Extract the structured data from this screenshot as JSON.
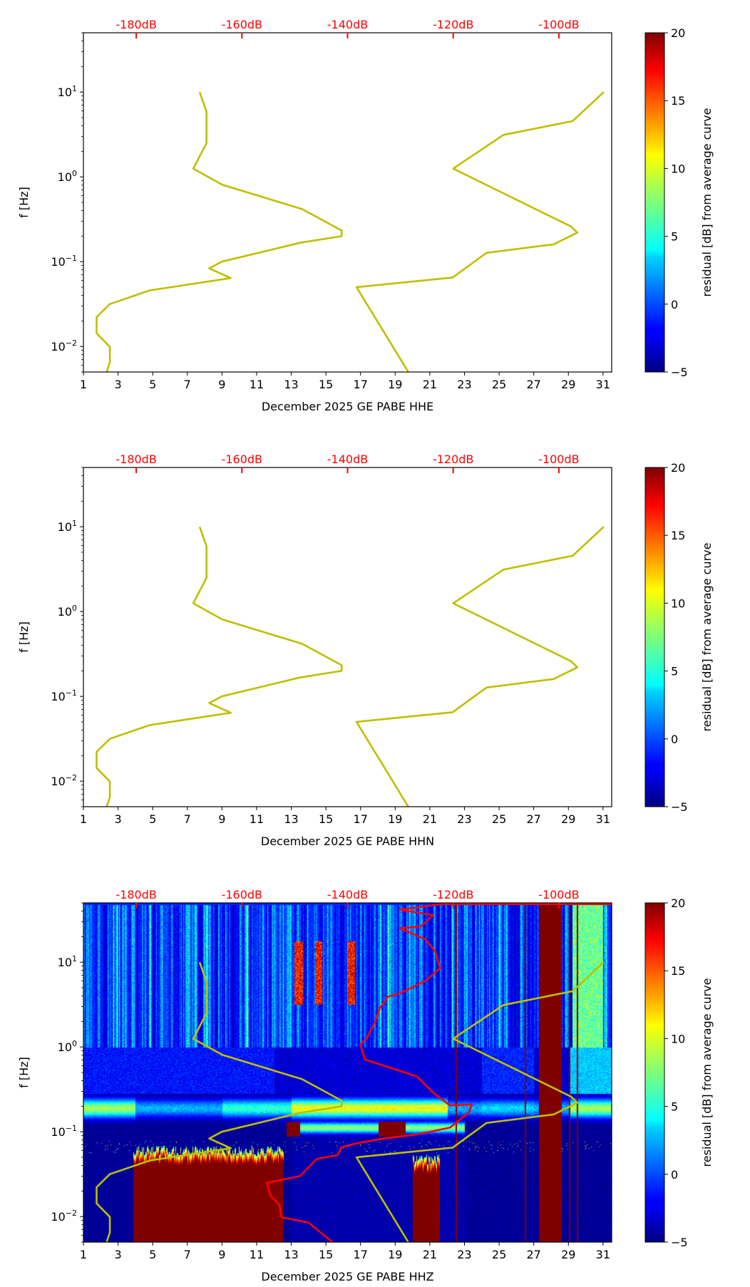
{
  "colors": {
    "model_curve": "#bfbf00",
    "median_curve": "#ff0000",
    "db_axis": "#ff0000",
    "axis": "#000000"
  },
  "common": {
    "ylabel": "f [Hz]",
    "colorbar_label": "residual [dB] from average curve",
    "xticks": [
      "1",
      "3",
      "5",
      "7",
      "9",
      "11",
      "13",
      "15",
      "17",
      "19",
      "21",
      "23",
      "25",
      "27",
      "29",
      "31"
    ],
    "top_ticks": [
      "-180dB",
      "-160dB",
      "-140dB",
      "-120dB",
      "-100dB"
    ],
    "yticks": [
      {
        "base": "10",
        "exp": "1"
      },
      {
        "base": "10",
        "exp": "0"
      },
      {
        "base": "10",
        "exp": "−1"
      },
      {
        "base": "10",
        "exp": "−2"
      }
    ],
    "colorbar_ticks": [
      "20",
      "15",
      "10",
      "5",
      "0",
      "−5"
    ]
  },
  "chart_data": [
    {
      "type": "heatmap",
      "xlabel": "December 2025 GE PABE  HHE",
      "ylabel": "f [Hz]",
      "xlim": [
        1,
        31.5
      ],
      "ylim": [
        0.005,
        50
      ],
      "yscale": "log",
      "top_axis": {
        "unit": "dB",
        "lim": [
          -190,
          -90
        ],
        "ticks": [
          -180,
          -160,
          -140,
          -120,
          -100
        ]
      },
      "colorbar": {
        "label": "residual [dB] from average curve",
        "range": [
          -5,
          20
        ],
        "ticks": [
          -5,
          0,
          5,
          10,
          15,
          20
        ],
        "cmap": "jet"
      },
      "has_spectrogram": false,
      "series": [
        {
          "name": "low noise model",
          "x_unit": "dB",
          "points": [
            [
              -168,
              10
            ],
            [
              -166.7,
              5.88
            ],
            [
              -166.7,
              2.5
            ],
            [
              -169.2,
              1.25
            ],
            [
              -163.7,
              0.806
            ],
            [
              -148.6,
              0.417
            ],
            [
              -141.1,
              0.233
            ],
            [
              -141.1,
              0.2
            ],
            [
              -149,
              0.167
            ],
            [
              -163.8,
              0.1
            ],
            [
              -166.2,
              0.0833
            ],
            [
              -162.1,
              0.0641
            ],
            [
              -177.5,
              0.0457
            ],
            [
              -185,
              0.0316
            ],
            [
              -187.5,
              0.0222
            ],
            [
              -187.5,
              0.0143
            ],
            [
              -185,
              0.0099
            ],
            [
              -185,
              0.0065
            ],
            [
              -185.6,
              0.005
            ]
          ]
        },
        {
          "name": "high noise model",
          "x_unit": "dB",
          "points": [
            [
              -91.5,
              10
            ],
            [
              -97.4,
              4.545
            ],
            [
              -110.5,
              3.125
            ],
            [
              -120,
              1.25
            ],
            [
              -97.7,
              0.26
            ],
            [
              -96.5,
              0.22
            ],
            [
              -101,
              0.16
            ],
            [
              -113.7,
              0.127
            ],
            [
              -120.1,
              0.065
            ],
            [
              -138.3,
              0.05
            ],
            [
              -128.5,
              0.005
            ]
          ]
        }
      ]
    },
    {
      "type": "heatmap",
      "xlabel": "December 2025 GE PABE  HHN",
      "ylabel": "f [Hz]",
      "xlim": [
        1,
        31.5
      ],
      "ylim": [
        0.005,
        50
      ],
      "yscale": "log",
      "top_axis": {
        "unit": "dB",
        "lim": [
          -190,
          -90
        ],
        "ticks": [
          -180,
          -160,
          -140,
          -120,
          -100
        ]
      },
      "colorbar": {
        "label": "residual [dB] from average curve",
        "range": [
          -5,
          20
        ],
        "ticks": [
          -5,
          0,
          5,
          10,
          15,
          20
        ],
        "cmap": "jet"
      },
      "has_spectrogram": false,
      "series": [
        {
          "name": "low noise model",
          "x_unit": "dB",
          "points": [
            [
              -168,
              10
            ],
            [
              -166.7,
              5.88
            ],
            [
              -166.7,
              2.5
            ],
            [
              -169.2,
              1.25
            ],
            [
              -163.7,
              0.806
            ],
            [
              -148.6,
              0.417
            ],
            [
              -141.1,
              0.233
            ],
            [
              -141.1,
              0.2
            ],
            [
              -149,
              0.167
            ],
            [
              -163.8,
              0.1
            ],
            [
              -166.2,
              0.0833
            ],
            [
              -162.1,
              0.0641
            ],
            [
              -177.5,
              0.0457
            ],
            [
              -185,
              0.0316
            ],
            [
              -187.5,
              0.0222
            ],
            [
              -187.5,
              0.0143
            ],
            [
              -185,
              0.0099
            ],
            [
              -185,
              0.0065
            ],
            [
              -185.6,
              0.005
            ]
          ]
        },
        {
          "name": "high noise model",
          "x_unit": "dB",
          "points": [
            [
              -91.5,
              10
            ],
            [
              -97.4,
              4.545
            ],
            [
              -110.5,
              3.125
            ],
            [
              -120,
              1.25
            ],
            [
              -97.7,
              0.26
            ],
            [
              -96.5,
              0.22
            ],
            [
              -101,
              0.16
            ],
            [
              -113.7,
              0.127
            ],
            [
              -120.1,
              0.065
            ],
            [
              -138.3,
              0.05
            ],
            [
              -128.5,
              0.005
            ]
          ]
        }
      ]
    },
    {
      "type": "heatmap",
      "xlabel": "December 2025 GE PABE  HHZ",
      "ylabel": "f [Hz]",
      "xlim": [
        1,
        31.5
      ],
      "ylim": [
        0.005,
        50
      ],
      "yscale": "log",
      "top_axis": {
        "unit": "dB",
        "lim": [
          -190,
          -90
        ],
        "ticks": [
          -180,
          -160,
          -140,
          -120,
          -100
        ]
      },
      "colorbar": {
        "label": "residual [dB] from average curve",
        "range": [
          -5,
          20
        ],
        "ticks": [
          -5,
          0,
          5,
          10,
          15,
          20
        ],
        "cmap": "jet"
      },
      "has_spectrogram": true,
      "spectrogram_features": {
        "saturated_low_freq_days": [
          [
            3.85,
            12.55
          ],
          [
            20.0,
            21.55
          ]
        ],
        "saturated_full_days": [
          [
            27.3,
            28.6
          ]
        ],
        "thin_gap_days": [
          22.5,
          26.5,
          29.05,
          29.5
        ],
        "microseism_band_hz": [
          0.1,
          0.25
        ]
      },
      "series": [
        {
          "name": "low noise model",
          "x_unit": "dB",
          "points": [
            [
              -168,
              10
            ],
            [
              -166.7,
              5.88
            ],
            [
              -166.7,
              2.5
            ],
            [
              -169.2,
              1.25
            ],
            [
              -163.7,
              0.806
            ],
            [
              -148.6,
              0.417
            ],
            [
              -141.1,
              0.233
            ],
            [
              -141.1,
              0.2
            ],
            [
              -149,
              0.167
            ],
            [
              -163.8,
              0.1
            ],
            [
              -166.2,
              0.0833
            ],
            [
              -162.1,
              0.0641
            ],
            [
              -177.5,
              0.0457
            ],
            [
              -185,
              0.0316
            ],
            [
              -187.5,
              0.0222
            ],
            [
              -187.5,
              0.0143
            ],
            [
              -185,
              0.0099
            ],
            [
              -185,
              0.0065
            ],
            [
              -185.6,
              0.005
            ]
          ]
        },
        {
          "name": "high noise model",
          "x_unit": "dB",
          "points": [
            [
              -91.5,
              10
            ],
            [
              -97.4,
              4.545
            ],
            [
              -110.5,
              3.125
            ],
            [
              -120,
              1.25
            ],
            [
              -97.7,
              0.26
            ],
            [
              -96.5,
              0.22
            ],
            [
              -101,
              0.16
            ],
            [
              -113.7,
              0.127
            ],
            [
              -120.1,
              0.065
            ],
            [
              -138.3,
              0.05
            ],
            [
              -128.5,
              0.005
            ]
          ]
        },
        {
          "name": "median PSD",
          "x_unit": "dB",
          "color": "#ff0000",
          "points": [
            [
              -90,
              48.5
            ],
            [
              -122,
              48.5
            ],
            [
              -130.1,
              41.5
            ],
            [
              -123.8,
              36
            ],
            [
              -126.1,
              26.5
            ],
            [
              -130.1,
              25
            ],
            [
              -125.3,
              18.7
            ],
            [
              -123.4,
              13.4
            ],
            [
              -122.5,
              8.5
            ],
            [
              -125.3,
              6.0
            ],
            [
              -130.1,
              4.3
            ],
            [
              -132.4,
              3.9
            ],
            [
              -134,
              2.8
            ],
            [
              -134.8,
              1.96
            ],
            [
              -136.4,
              1.26
            ],
            [
              -137.6,
              1.07
            ],
            [
              -136.7,
              0.71
            ],
            [
              -131.6,
              0.56
            ],
            [
              -126.9,
              0.45
            ],
            [
              -123.8,
              0.29
            ],
            [
              -120.6,
              0.204
            ],
            [
              -116.5,
              0.21
            ],
            [
              -117,
              0.17
            ],
            [
              -120.6,
              0.112
            ],
            [
              -126.9,
              0.093
            ],
            [
              -133.2,
              0.083
            ],
            [
              -137.9,
              0.074
            ],
            [
              -141.1,
              0.066
            ],
            [
              -141.9,
              0.053
            ],
            [
              -145.8,
              0.048
            ],
            [
              -149,
              0.03
            ],
            [
              -155.3,
              0.025
            ],
            [
              -154.5,
              0.0173
            ],
            [
              -152.9,
              0.0138
            ],
            [
              -152.5,
              0.0098
            ],
            [
              -147.4,
              0.0085
            ],
            [
              -142.7,
              0.0049
            ]
          ]
        }
      ]
    }
  ]
}
